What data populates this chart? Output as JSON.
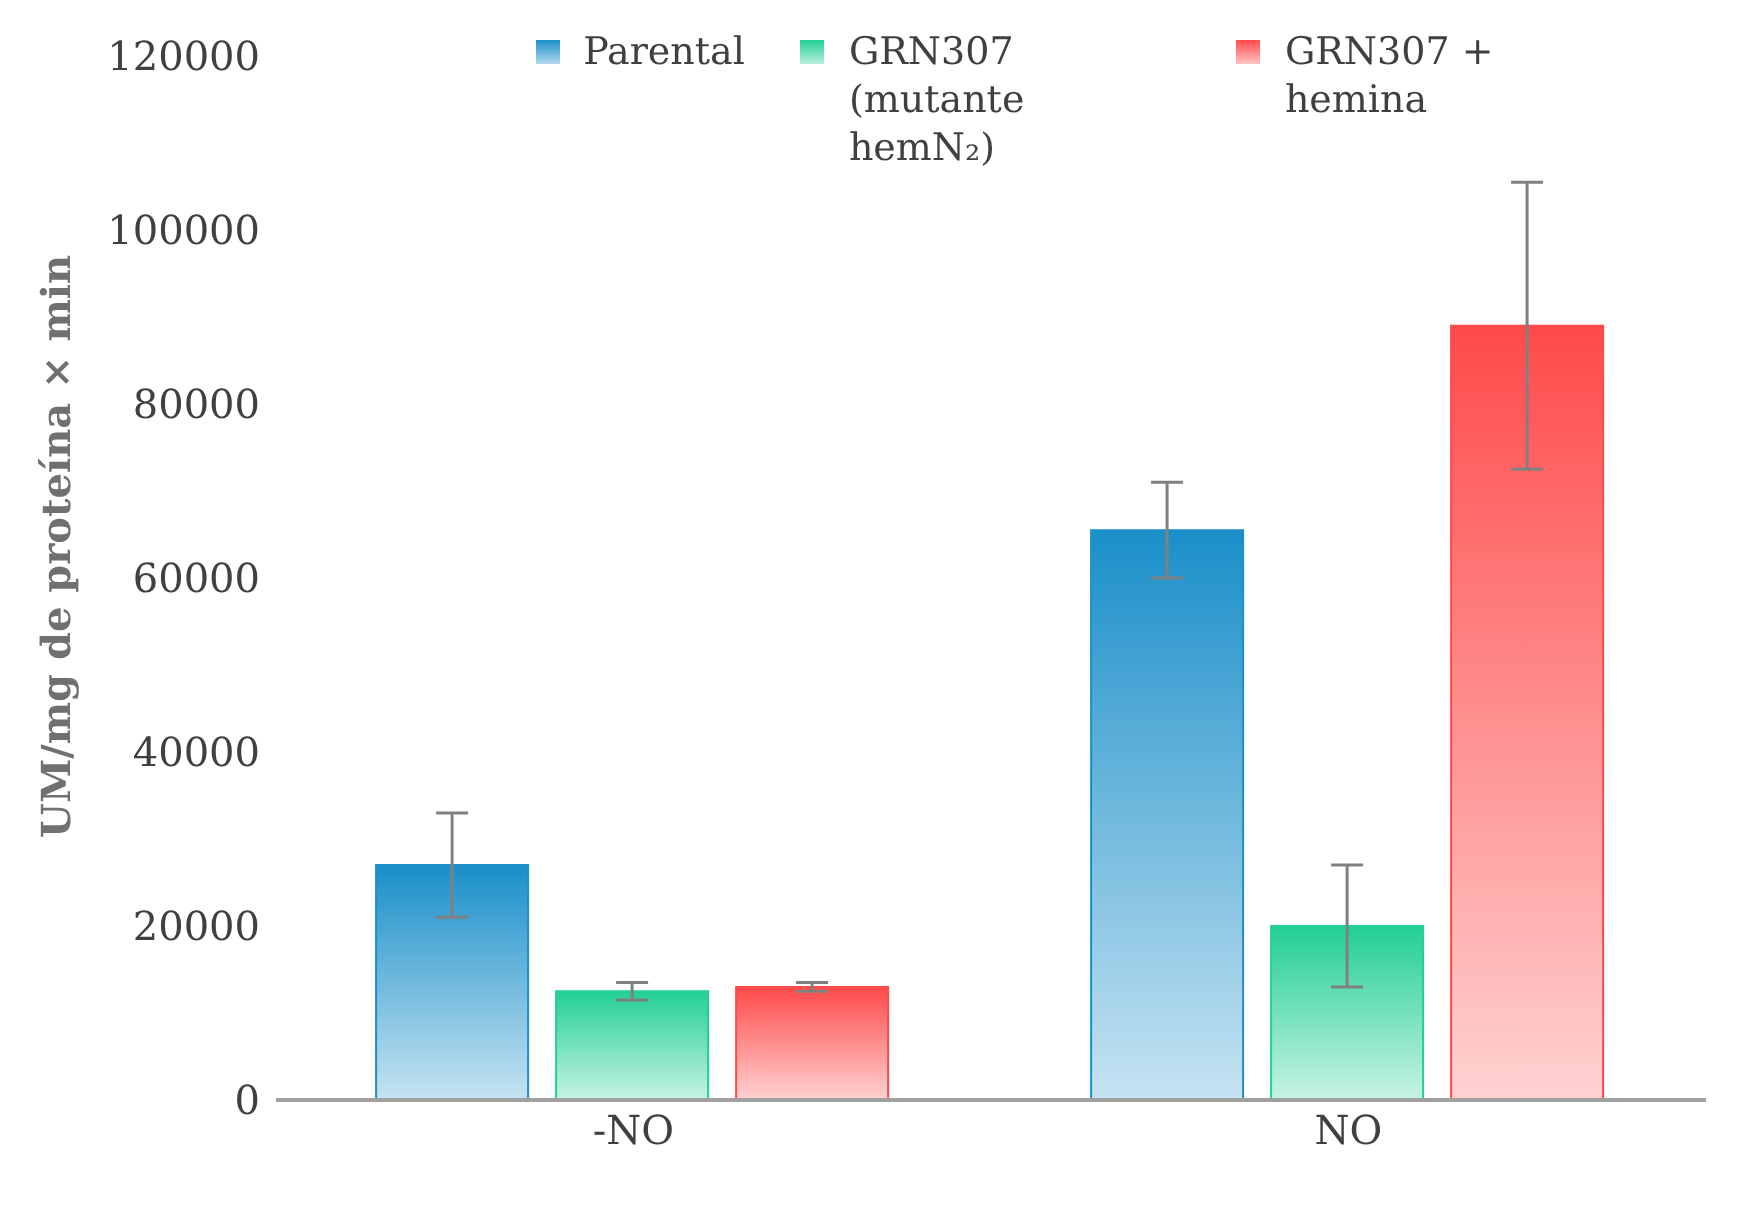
{
  "chart_data": {
    "type": "bar",
    "ylabel": "UM/mg de proteína × min",
    "categories": [
      "-NO",
      "NO"
    ],
    "series": [
      {
        "name": "Parental",
        "color": "#1a8fc9",
        "values": [
          27000,
          65500
        ],
        "errors": [
          6000,
          5500
        ]
      },
      {
        "name": "GRN307 (mutante hemN₂)",
        "color": "#22cf95",
        "values": [
          12500,
          20000
        ],
        "errors": [
          1000,
          7000
        ]
      },
      {
        "name": "GRN307 + hemina",
        "color": "#ff4a4a",
        "values": [
          13000,
          89000
        ],
        "errors": [
          500,
          16500
        ]
      }
    ],
    "ylim": [
      0,
      120000
    ],
    "yticks": [
      0,
      20000,
      40000,
      60000,
      80000,
      100000,
      120000
    ],
    "grid": false,
    "legend": "top"
  }
}
